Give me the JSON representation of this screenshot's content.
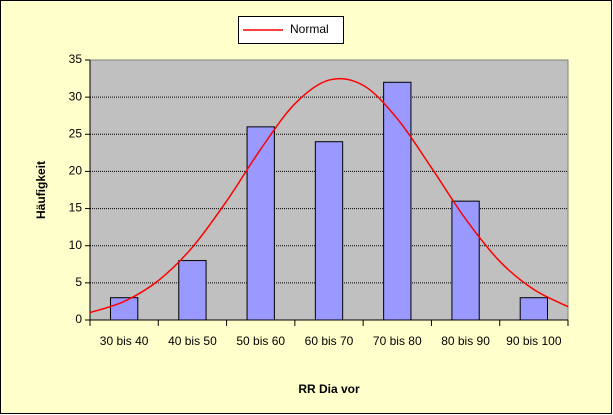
{
  "chart_data": {
    "type": "bar",
    "categories": [
      "30 bis 40",
      "40 bis 50",
      "50 bis 60",
      "60 bis 70",
      "70 bis 80",
      "80 bis 90",
      "90 bis 100"
    ],
    "values": [
      3,
      8,
      26,
      24,
      32,
      16,
      3
    ],
    "color": "#9999ff",
    "line": {
      "name": "Normal",
      "color": "#ff0000",
      "values": [
        1.0,
        2.5,
        5.3,
        9.8,
        16.0,
        23.0,
        29.1,
        32.3,
        31.6,
        27.1,
        20.5,
        13.6,
        7.9,
        4.1,
        1.8
      ]
    },
    "xlabel": "RR Dia vor",
    "ylabel": "Häufigkeit",
    "ylim": [
      0,
      35
    ],
    "yticks": [
      0,
      5,
      10,
      15,
      20,
      25,
      30,
      35
    ],
    "grid": true
  }
}
